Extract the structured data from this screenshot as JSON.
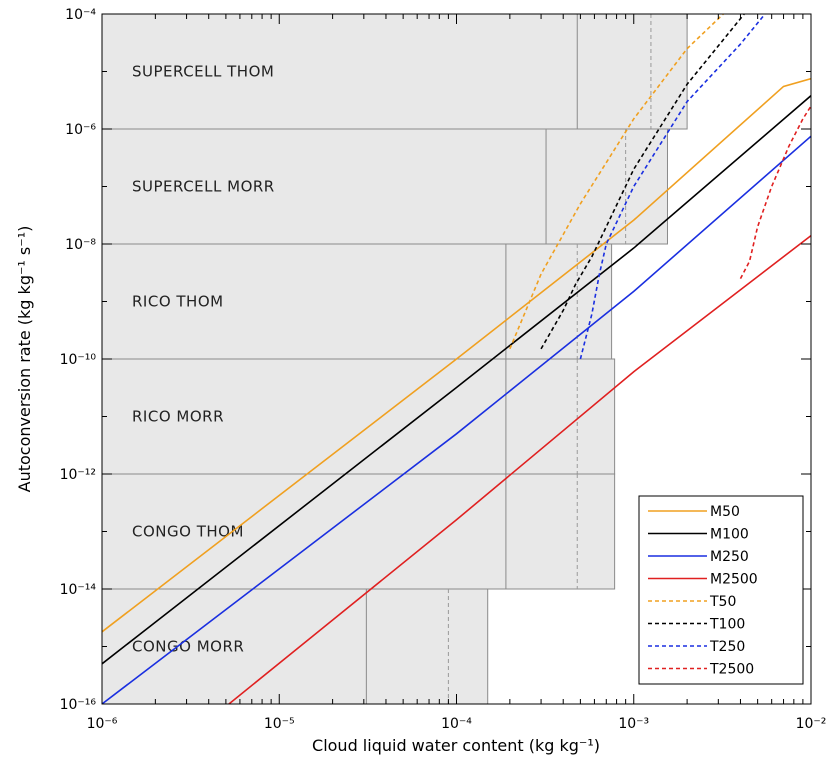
{
  "chart_data": {
    "type": "line",
    "x_axis": {
      "label": "Cloud liquid water content (kg kg⁻¹)",
      "scale": "log",
      "range": [
        1e-06,
        0.01
      ],
      "ticks": [
        {
          "value": 1e-06,
          "label": "10⁻⁶"
        },
        {
          "value": 1e-05,
          "label": "10⁻⁵"
        },
        {
          "value": 0.0001,
          "label": "10⁻⁴"
        },
        {
          "value": 0.001,
          "label": "10⁻³"
        },
        {
          "value": 0.01,
          "label": "10⁻²"
        }
      ]
    },
    "y_axis": {
      "label": "Autoconversion rate (kg kg⁻¹ s⁻¹)",
      "scale": "log",
      "range": [
        1e-16,
        0.0001
      ],
      "ticks": [
        {
          "value": 0.0001,
          "label": "10⁻⁴"
        },
        {
          "value": 1e-06,
          "label": "10⁻⁶"
        },
        {
          "value": 1e-08,
          "label": "10⁻⁸"
        },
        {
          "value": 1e-10,
          "label": "10⁻¹⁰"
        },
        {
          "value": 1e-12,
          "label": "10⁻¹²"
        },
        {
          "value": 1e-14,
          "label": "10⁻¹⁴"
        },
        {
          "value": 1e-16,
          "label": "10⁻¹⁶"
        }
      ]
    },
    "regions": [
      {
        "name": "SUPERCELL THOM",
        "y_range": [
          1e-06,
          0.0001
        ],
        "x_max": 0.002,
        "inner_line": 0.00048,
        "dashed": 0.00125
      },
      {
        "name": "SUPERCELL MORR",
        "y_range": [
          1e-08,
          1e-06
        ],
        "x_max": 0.00155,
        "inner_line": 0.00032,
        "dashed": 0.0009
      },
      {
        "name": "RICO THOM",
        "y_range": [
          1e-10,
          1e-08
        ],
        "x_max": 0.00075,
        "inner_line": 0.00019,
        "dashed": 0.00048
      },
      {
        "name": "RICO MORR",
        "y_range": [
          1e-12,
          1e-10
        ],
        "x_max": 0.00078,
        "inner_line": 0.00019,
        "dashed": 0.00048
      },
      {
        "name": "CONGO THOM",
        "y_range": [
          1e-14,
          1e-12
        ],
        "x_max": 0.00078,
        "inner_line": 0.00019,
        "dashed": 0.00048
      },
      {
        "name": "CONGO MORR",
        "y_range": [
          1e-16,
          1e-14
        ],
        "x_max": 0.00015,
        "inner_line": 3.1e-05,
        "dashed": 9e-05
      }
    ],
    "series": [
      {
        "name": "M50",
        "color": "#f0a020",
        "dash": false,
        "points": [
          [
            1e-06,
            1.8e-15
          ],
          [
            0.0001,
            1e-10
          ],
          [
            0.001,
            2.6e-08
          ],
          [
            0.007,
            5.5e-06
          ],
          [
            0.01,
            7.5e-06
          ]
        ]
      },
      {
        "name": "M100",
        "color": "#000000",
        "dash": false,
        "points": [
          [
            1e-06,
            5e-16
          ],
          [
            0.0001,
            3.2e-11
          ],
          [
            0.001,
            8.5e-09
          ],
          [
            0.01,
            3.8e-06
          ]
        ]
      },
      {
        "name": "M250",
        "color": "#1a2fe0",
        "dash": false,
        "points": [
          [
            1e-06,
            1e-16
          ],
          [
            0.0001,
            5e-12
          ],
          [
            0.001,
            1.5e-09
          ],
          [
            0.01,
            7.5e-07
          ]
        ]
      },
      {
        "name": "M2500",
        "color": "#e02020",
        "dash": false,
        "points": [
          [
            5.2e-06,
            1e-16
          ],
          [
            0.0001,
            1.6e-13
          ],
          [
            0.001,
            6e-11
          ],
          [
            0.01,
            1.4e-08
          ]
        ]
      },
      {
        "name": "T50",
        "color": "#f0a020",
        "dash": true,
        "points": [
          [
            0.0002,
            1.5e-10
          ],
          [
            0.0003,
            3e-09
          ],
          [
            0.0005,
            5e-08
          ],
          [
            0.001,
            1.5e-06
          ],
          [
            0.002,
            2.5e-05
          ],
          [
            0.0032,
            0.0001
          ]
        ]
      },
      {
        "name": "T100",
        "color": "#000000",
        "dash": true,
        "points": [
          [
            0.0003,
            1.5e-10
          ],
          [
            0.0004,
            7e-10
          ],
          [
            0.00047,
            2e-09
          ],
          [
            0.00058,
            6e-09
          ],
          [
            0.0007,
            2e-08
          ],
          [
            0.001,
            2e-07
          ],
          [
            0.002,
            6e-06
          ],
          [
            0.0042,
            0.0001
          ]
        ]
      },
      {
        "name": "T250",
        "color": "#1a2fe0",
        "dash": true,
        "points": [
          [
            0.0005,
            1e-10
          ],
          [
            0.00058,
            6e-10
          ],
          [
            0.00064,
            3e-09
          ],
          [
            0.0007,
            1e-08
          ],
          [
            0.001,
            1e-07
          ],
          [
            0.002,
            3e-06
          ],
          [
            0.004,
            3e-05
          ],
          [
            0.0055,
            0.0001
          ]
        ]
      },
      {
        "name": "T2500",
        "color": "#e02020",
        "dash": true,
        "points": [
          [
            0.004,
            2.5e-09
          ],
          [
            0.0045,
            5e-09
          ],
          [
            0.005,
            2e-08
          ],
          [
            0.006,
            1e-07
          ],
          [
            0.0075,
            5e-07
          ],
          [
            0.009,
            1.5e-06
          ],
          [
            0.01,
            2.5e-06
          ]
        ]
      }
    ],
    "legend": {
      "position": "bottom-right"
    },
    "grid": false
  }
}
